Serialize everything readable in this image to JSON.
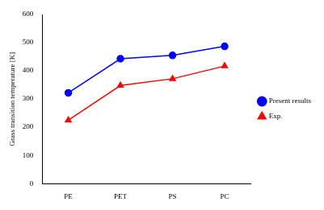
{
  "chart_data": {
    "type": "line",
    "y_label": "Grass transition temperature [K]",
    "categories": [
      "PE",
      "PET",
      "PS",
      "PC"
    ],
    "series": [
      {
        "name": "Present results",
        "color": "#0000ff",
        "marker": "circle",
        "line_style": "solid",
        "values": [
          322,
          443,
          455,
          487
        ]
      },
      {
        "name": "Exp.",
        "color": "#ff0000",
        "marker": "triangle",
        "line_style": "solid",
        "values": [
          225,
          348,
          372,
          417
        ]
      }
    ],
    "ylim": [
      0,
      600
    ],
    "yticks": [
      0,
      100,
      200,
      300,
      400,
      500,
      600
    ],
    "grid": false,
    "legend": "right"
  }
}
